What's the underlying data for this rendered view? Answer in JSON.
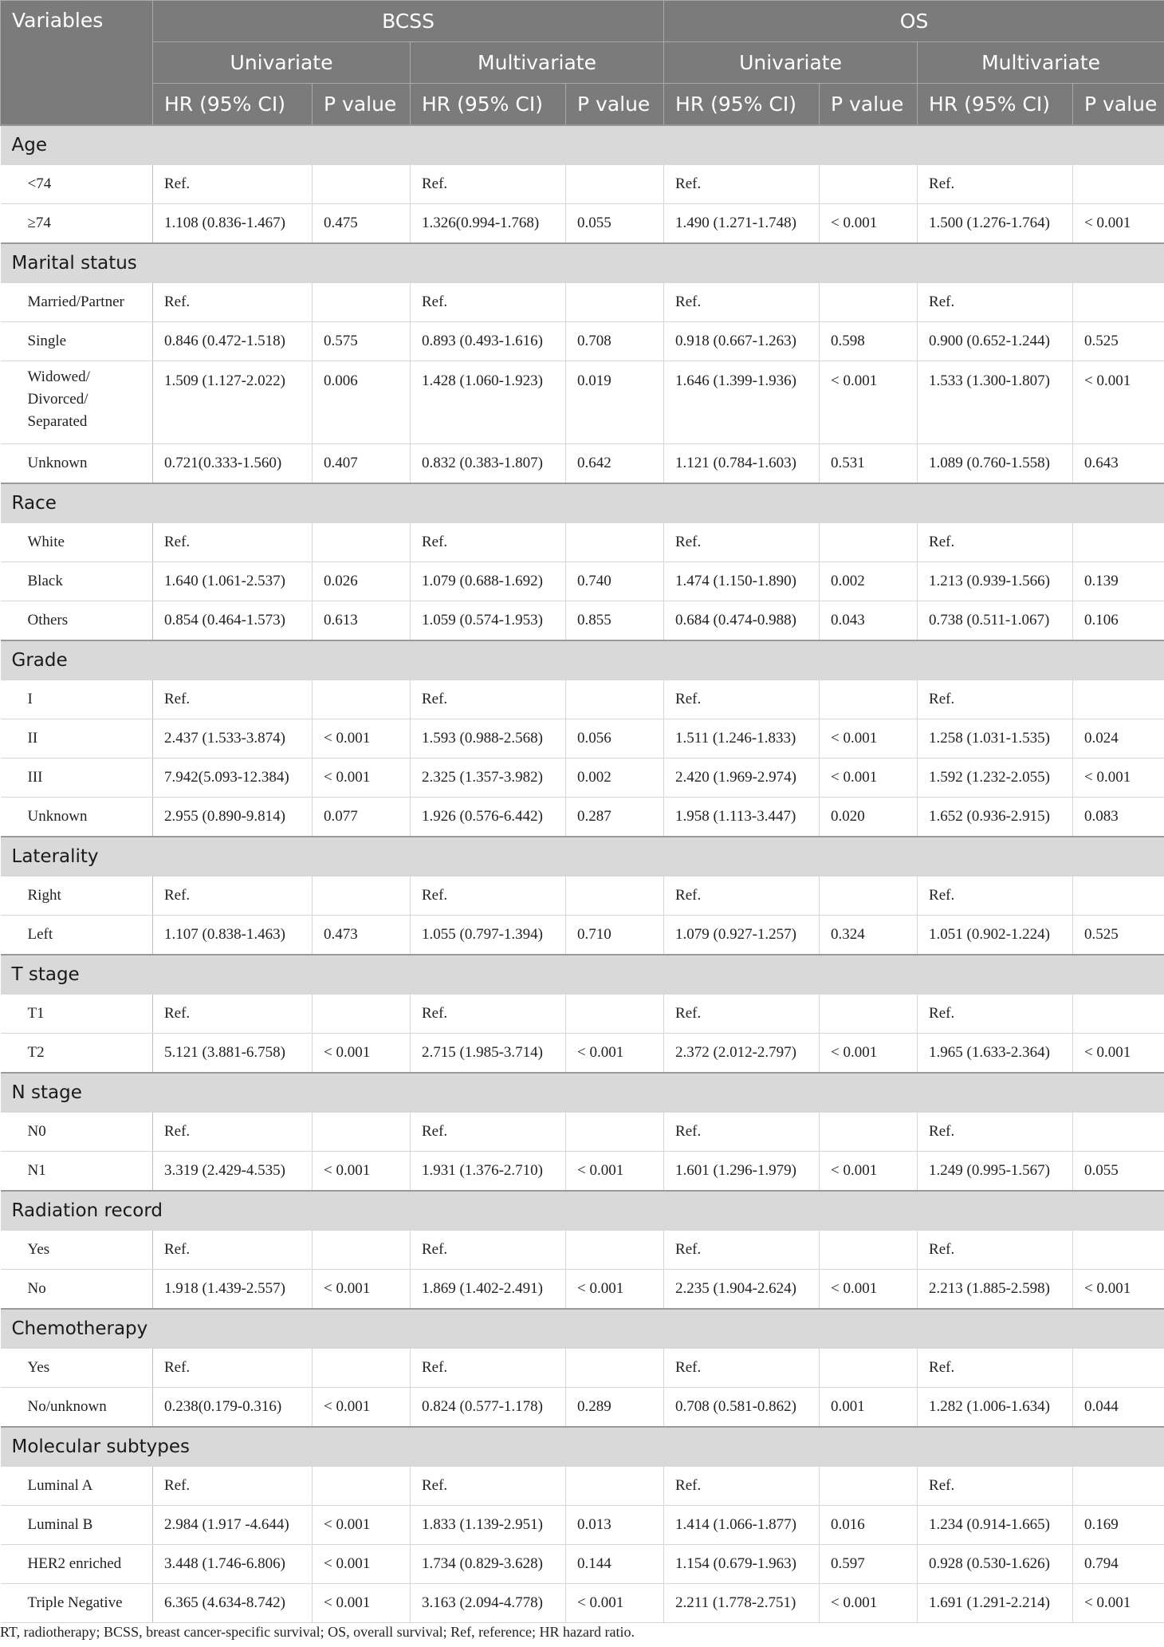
{
  "header": {
    "variables": "Variables",
    "bcss": "BCSS",
    "os": "OS",
    "univariate": "Univariate",
    "multivariate": "Multivariate",
    "hr": "HR (95% CI)",
    "p": "P value"
  },
  "colors": {
    "header_bg": "#7b7b7b",
    "section_bg": "#d9d9d9"
  },
  "sections": [
    {
      "title": "Age",
      "rows": [
        [
          "<74",
          "Ref.",
          "",
          "Ref.",
          "",
          "Ref.",
          "",
          "Ref.",
          ""
        ],
        [
          "≥74",
          "1.108 (0.836-1.467)",
          "0.475",
          "1.326(0.994-1.768)",
          "0.055",
          "1.490 (1.271-1.748)",
          "< 0.001",
          "1.500 (1.276-1.764)",
          "< 0.001"
        ]
      ]
    },
    {
      "title": "Marital status",
      "rows": [
        [
          "Married/Partner",
          "Ref.",
          "",
          "Ref.",
          "",
          "Ref.",
          "",
          "Ref.",
          ""
        ],
        [
          "Single",
          "0.846 (0.472-1.518)",
          "0.575",
          "0.893 (0.493-1.616)",
          "0.708",
          "0.918 (0.667-1.263)",
          "0.598",
          "0.900 (0.652-1.244)",
          "0.525"
        ],
        [
          "Widowed/ Divorced/ Separated",
          "1.509 (1.127-2.022)",
          "0.006",
          "1.428 (1.060-1.923)",
          "0.019",
          "1.646 (1.399-1.936)",
          "< 0.001",
          "1.533 (1.300-1.807)",
          "< 0.001"
        ],
        [
          "Unknown",
          "0.721(0.333-1.560)",
          "0.407",
          "0.832 (0.383-1.807)",
          "0.642",
          "1.121 (0.784-1.603)",
          "0.531",
          "1.089 (0.760-1.558)",
          "0.643"
        ]
      ]
    },
    {
      "title": "Race",
      "rows": [
        [
          "White",
          "Ref.",
          "",
          "Ref.",
          "",
          "Ref.",
          "",
          "Ref.",
          ""
        ],
        [
          "Black",
          "1.640 (1.061-2.537)",
          "0.026",
          "1.079 (0.688-1.692)",
          "0.740",
          "1.474 (1.150-1.890)",
          "0.002",
          "1.213 (0.939-1.566)",
          "0.139"
        ],
        [
          "Others",
          "0.854 (0.464-1.573)",
          "0.613",
          "1.059 (0.574-1.953)",
          "0.855",
          "0.684 (0.474-0.988)",
          "0.043",
          "0.738 (0.511-1.067)",
          "0.106"
        ]
      ]
    },
    {
      "title": "Grade",
      "rows": [
        [
          "I",
          "Ref.",
          "",
          "Ref.",
          "",
          "Ref.",
          "",
          "Ref.",
          ""
        ],
        [
          "II",
          "2.437 (1.533-3.874)",
          "< 0.001",
          "1.593 (0.988-2.568)",
          "0.056",
          "1.511 (1.246-1.833)",
          "< 0.001",
          "1.258 (1.031-1.535)",
          "0.024"
        ],
        [
          "III",
          "7.942(5.093-12.384)",
          "< 0.001",
          "2.325 (1.357-3.982)",
          "0.002",
          "2.420 (1.969-2.974)",
          "< 0.001",
          "1.592 (1.232-2.055)",
          "< 0.001"
        ],
        [
          "Unknown",
          "2.955 (0.890-9.814)",
          "0.077",
          "1.926 (0.576-6.442)",
          "0.287",
          "1.958 (1.113-3.447)",
          "0.020",
          "1.652 (0.936-2.915)",
          "0.083"
        ]
      ]
    },
    {
      "title": "Laterality",
      "rows": [
        [
          "Right",
          "Ref.",
          "",
          "Ref.",
          "",
          "Ref.",
          "",
          "Ref.",
          ""
        ],
        [
          "Left",
          "1.107 (0.838-1.463)",
          "0.473",
          "1.055 (0.797-1.394)",
          "0.710",
          "1.079 (0.927-1.257)",
          "0.324",
          "1.051 (0.902-1.224)",
          "0.525"
        ]
      ]
    },
    {
      "title": "T stage",
      "rows": [
        [
          "T1",
          "Ref.",
          "",
          "Ref.",
          "",
          "Ref.",
          "",
          "Ref.",
          ""
        ],
        [
          "T2",
          "5.121 (3.881-6.758)",
          "< 0.001",
          "2.715 (1.985-3.714)",
          "< 0.001",
          "2.372 (2.012-2.797)",
          "< 0.001",
          "1.965 (1.633-2.364)",
          "< 0.001"
        ]
      ]
    },
    {
      "title": "N stage",
      "rows": [
        [
          "N0",
          "Ref.",
          "",
          "Ref.",
          "",
          "Ref.",
          "",
          "Ref.",
          ""
        ],
        [
          "N1",
          "3.319 (2.429-4.535)",
          "< 0.001",
          "1.931 (1.376-2.710)",
          "< 0.001",
          "1.601 (1.296-1.979)",
          "< 0.001",
          "1.249 (0.995-1.567)",
          "0.055"
        ]
      ]
    },
    {
      "title": "Radiation record",
      "rows": [
        [
          "Yes",
          "Ref.",
          "",
          "Ref.",
          "",
          "Ref.",
          "",
          "Ref.",
          ""
        ],
        [
          "No",
          "1.918 (1.439-2.557)",
          "< 0.001",
          "1.869 (1.402-2.491)",
          "< 0.001",
          "2.235 (1.904-2.624)",
          "< 0.001",
          "2.213 (1.885-2.598)",
          "< 0.001"
        ]
      ]
    },
    {
      "title": "Chemotherapy",
      "rows": [
        [
          "Yes",
          "Ref.",
          "",
          "Ref.",
          "",
          "Ref.",
          "",
          "Ref.",
          ""
        ],
        [
          "No/unknown",
          "0.238(0.179-0.316)",
          "< 0.001",
          "0.824 (0.577-1.178)",
          "0.289",
          "0.708 (0.581-0.862)",
          "0.001",
          "1.282 (1.006-1.634)",
          "0.044"
        ]
      ]
    },
    {
      "title": "Molecular subtypes",
      "rows": [
        [
          "Luminal A",
          "Ref.",
          "",
          "Ref.",
          "",
          "Ref.",
          "",
          "Ref.",
          ""
        ],
        [
          "Luminal B",
          "2.984 (1.917 -4.644)",
          "< 0.001",
          "1.833 (1.139-2.951)",
          "0.013",
          "1.414 (1.066-1.877)",
          "0.016",
          "1.234 (0.914-1.665)",
          "0.169"
        ],
        [
          "HER2 enriched",
          "3.448 (1.746-6.806)",
          "< 0.001",
          "1.734 (0.829-3.628)",
          "0.144",
          "1.154 (0.679-1.963)",
          "0.597",
          "0.928 (0.530-1.626)",
          "0.794"
        ],
        [
          "Triple Negative",
          "6.365 (4.634-8.742)",
          "< 0.001",
          "3.163 (2.094-4.778)",
          "< 0.001",
          "2.211 (1.778-2.751)",
          "< 0.001",
          "1.691 (1.291-2.214)",
          "< 0.001"
        ]
      ]
    }
  ],
  "footnote": "RT, radiotherapy; BCSS, breast cancer-specific survival; OS, overall survival; Ref, reference; HR hazard ratio."
}
